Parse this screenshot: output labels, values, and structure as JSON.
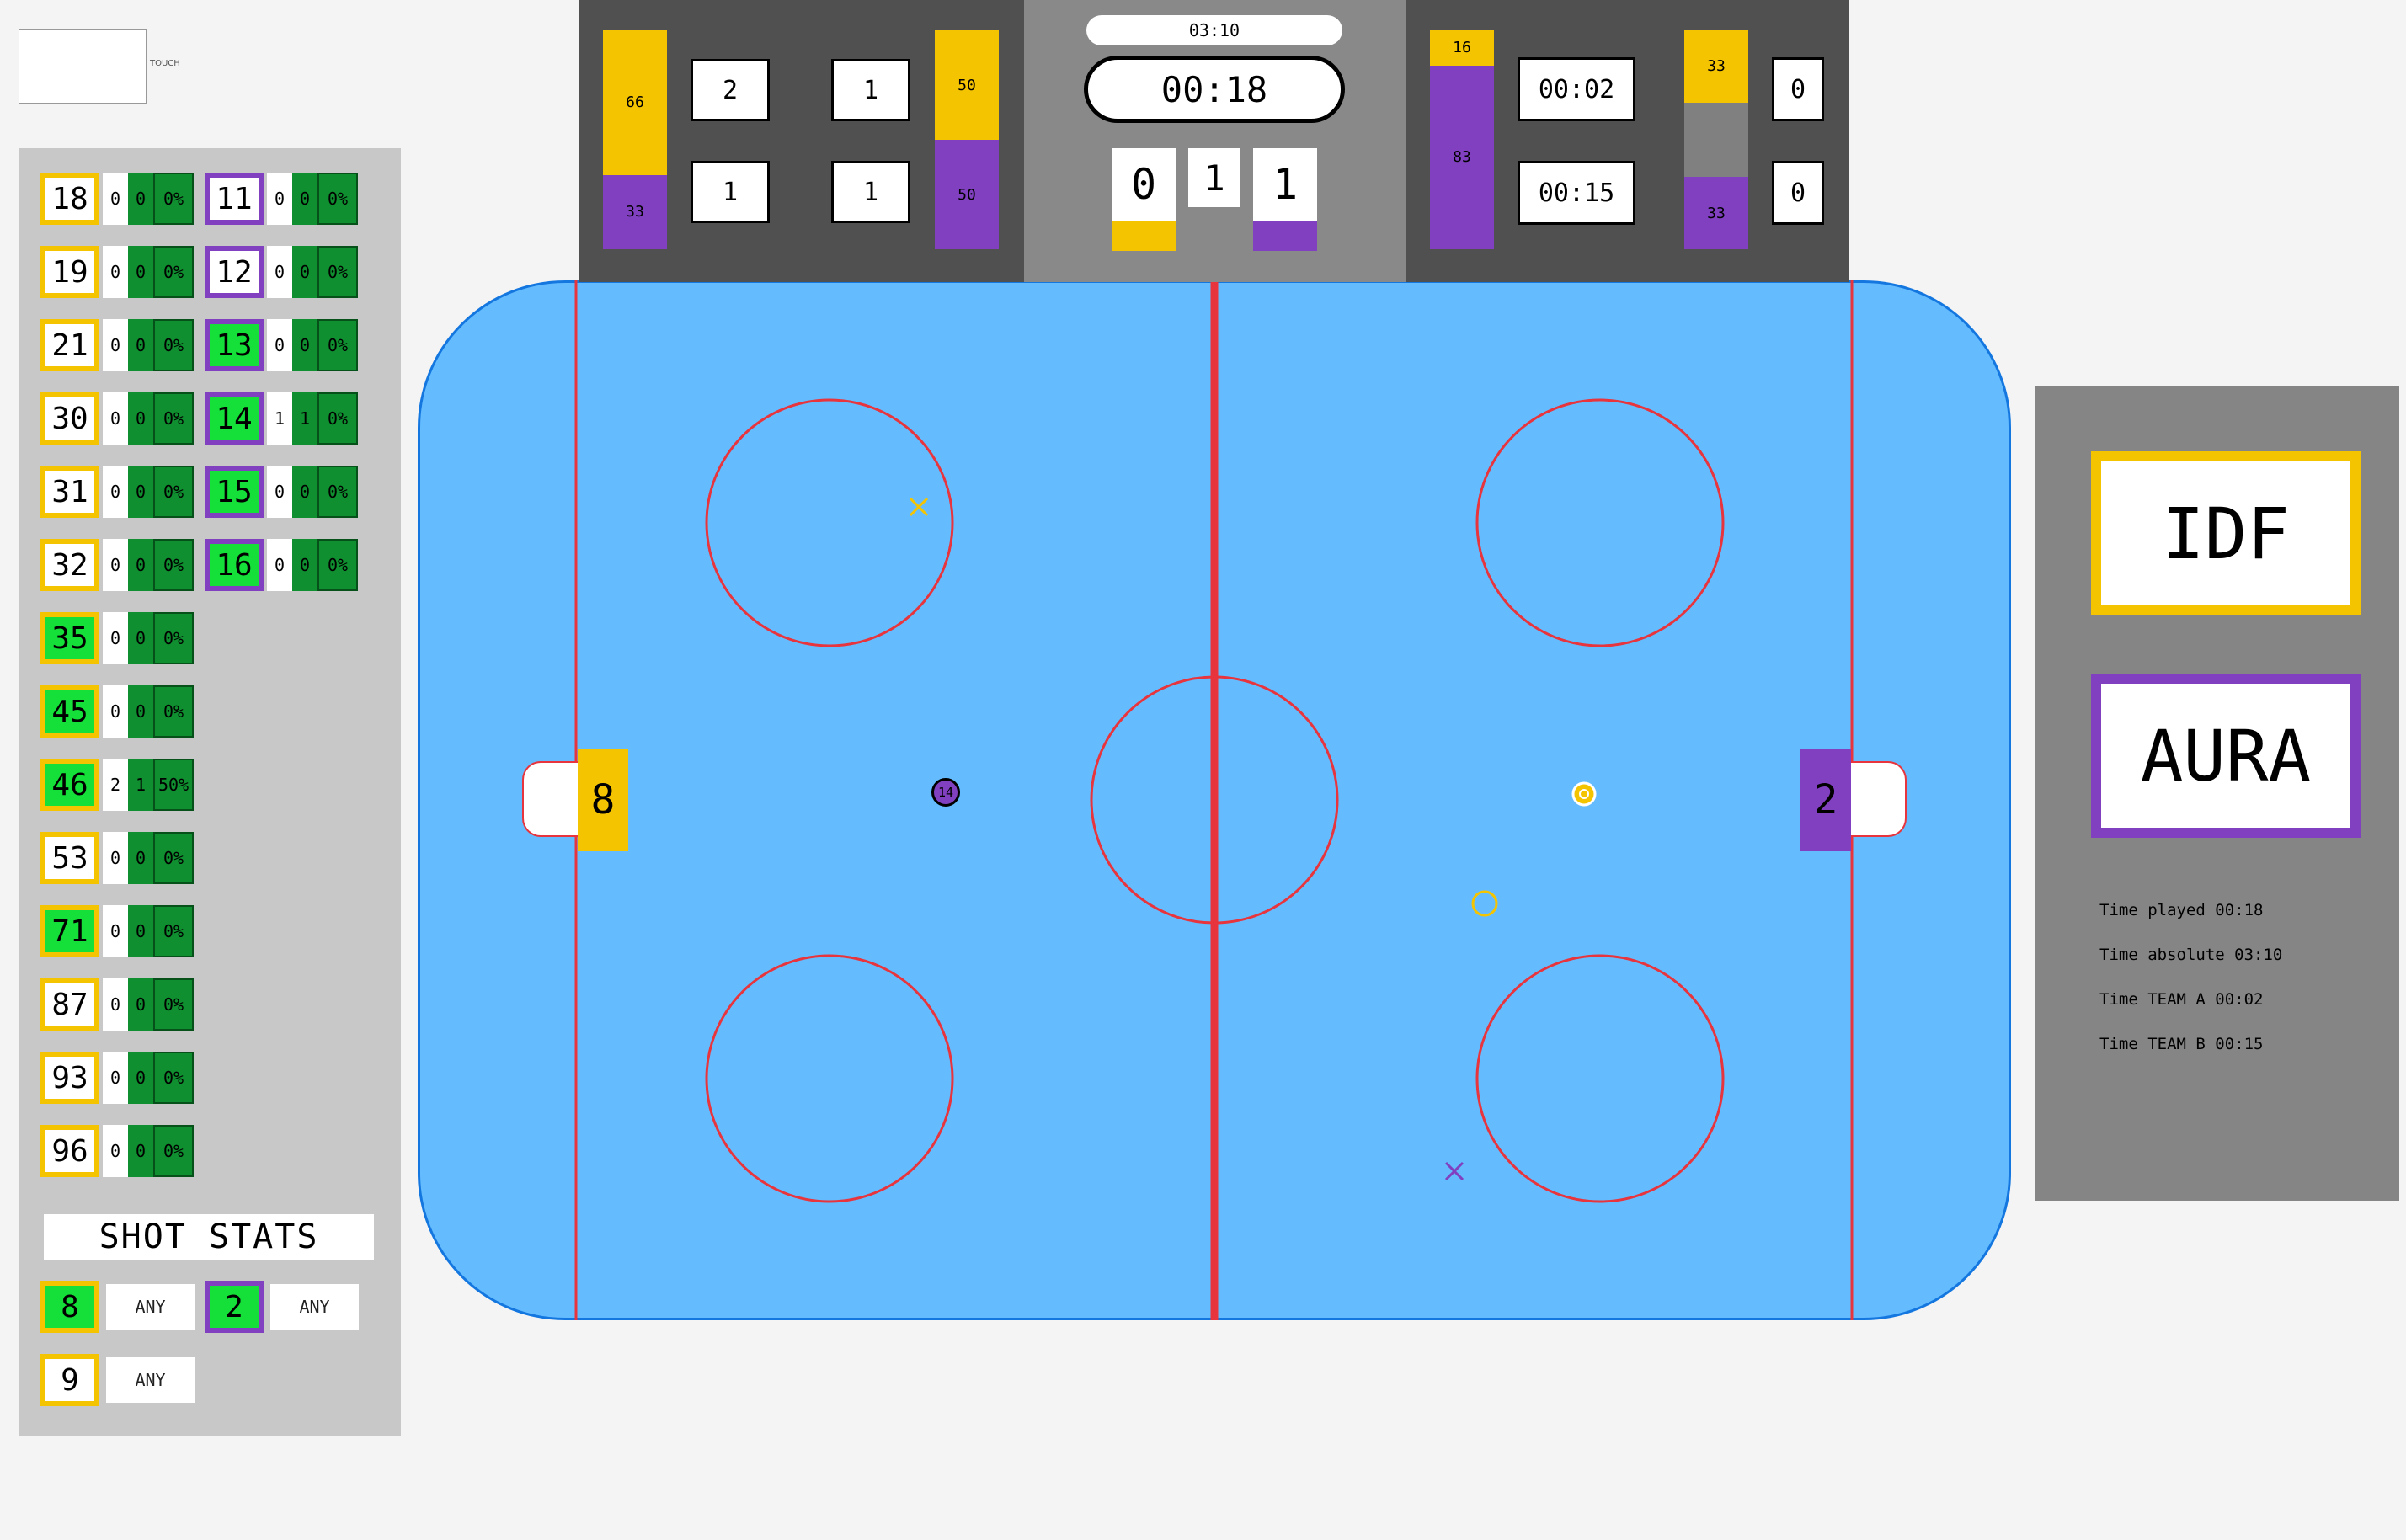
{
  "touch": {
    "label": "TOUCH"
  },
  "players_a": [
    {
      "number": "18",
      "a": "0",
      "b": "0",
      "pct": "0%",
      "active": false
    },
    {
      "number": "19",
      "a": "0",
      "b": "0",
      "pct": "0%",
      "active": false
    },
    {
      "number": "21",
      "a": "0",
      "b": "0",
      "pct": "0%",
      "active": false
    },
    {
      "number": "30",
      "a": "0",
      "b": "0",
      "pct": "0%",
      "active": false
    },
    {
      "number": "31",
      "a": "0",
      "b": "0",
      "pct": "0%",
      "active": false
    },
    {
      "number": "32",
      "a": "0",
      "b": "0",
      "pct": "0%",
      "active": false
    },
    {
      "number": "35",
      "a": "0",
      "b": "0",
      "pct": "0%",
      "active": true
    },
    {
      "number": "45",
      "a": "0",
      "b": "0",
      "pct": "0%",
      "active": true
    },
    {
      "number": "46",
      "a": "2",
      "b": "1",
      "pct": "50%",
      "active": true
    },
    {
      "number": "53",
      "a": "0",
      "b": "0",
      "pct": "0%",
      "active": false
    },
    {
      "number": "71",
      "a": "0",
      "b": "0",
      "pct": "0%",
      "active": true
    },
    {
      "number": "87",
      "a": "0",
      "b": "0",
      "pct": "0%",
      "active": false
    },
    {
      "number": "93",
      "a": "0",
      "b": "0",
      "pct": "0%",
      "active": false
    },
    {
      "number": "96",
      "a": "0",
      "b": "0",
      "pct": "0%",
      "active": false
    }
  ],
  "players_b": [
    {
      "number": "11",
      "a": "0",
      "b": "0",
      "pct": "0%",
      "active": false
    },
    {
      "number": "12",
      "a": "0",
      "b": "0",
      "pct": "0%",
      "active": false
    },
    {
      "number": "13",
      "a": "0",
      "b": "0",
      "pct": "0%",
      "active": true
    },
    {
      "number": "14",
      "a": "1",
      "b": "1",
      "pct": "0%",
      "active": true
    },
    {
      "number": "15",
      "a": "0",
      "b": "0",
      "pct": "0%",
      "active": true
    },
    {
      "number": "16",
      "a": "0",
      "b": "0",
      "pct": "0%",
      "active": true
    }
  ],
  "shot_stats": {
    "title": "SHOT STATS",
    "rows": [
      {
        "number": "8",
        "team": "a",
        "active": true,
        "value": "ANY"
      },
      {
        "number": "2",
        "team": "b",
        "active": true,
        "value": "ANY"
      },
      {
        "number": "9",
        "team": "a",
        "active": false,
        "value": "ANY"
      }
    ]
  },
  "scoreboard": {
    "left": {
      "bar1": {
        "top": "66",
        "bottom": "33",
        "top_share": 66
      },
      "box_r1c1": "2",
      "box_r1c2": "1",
      "box_r2c1": "1",
      "box_r2c2": "1",
      "bar2": {
        "top": "50",
        "bottom": "50",
        "top_share": 50
      }
    },
    "middle": {
      "absolute_time": "03:10",
      "game_clock": "00:18",
      "score_a": "0",
      "period": "1",
      "score_b": "1"
    },
    "right": {
      "bar1": {
        "top": "16",
        "bottom": "83",
        "top_share": 16
      },
      "time_a": "00:02",
      "time_b": "00:15",
      "bar2": {
        "top": "33",
        "bottom": "33",
        "top_share": 33,
        "middle_share": 34
      },
      "count_a": "0",
      "count_b": "0"
    }
  },
  "rink": {
    "goalie_left": "8",
    "goalie_right": "2",
    "puck_player": "14"
  },
  "teams": {
    "a": "IDF",
    "b": "AURA"
  },
  "info": {
    "time_played": "Time played 00:18",
    "time_absolute": "Time absolute 03:10",
    "time_team_a": "Time TEAM A 00:02",
    "time_team_b": "Time TEAM B 00:15"
  },
  "colors": {
    "team_a": "#f5c400",
    "team_b": "#8040c0",
    "active": "#15e039",
    "ice": "#64bcff",
    "line_red": "#e8343c"
  }
}
